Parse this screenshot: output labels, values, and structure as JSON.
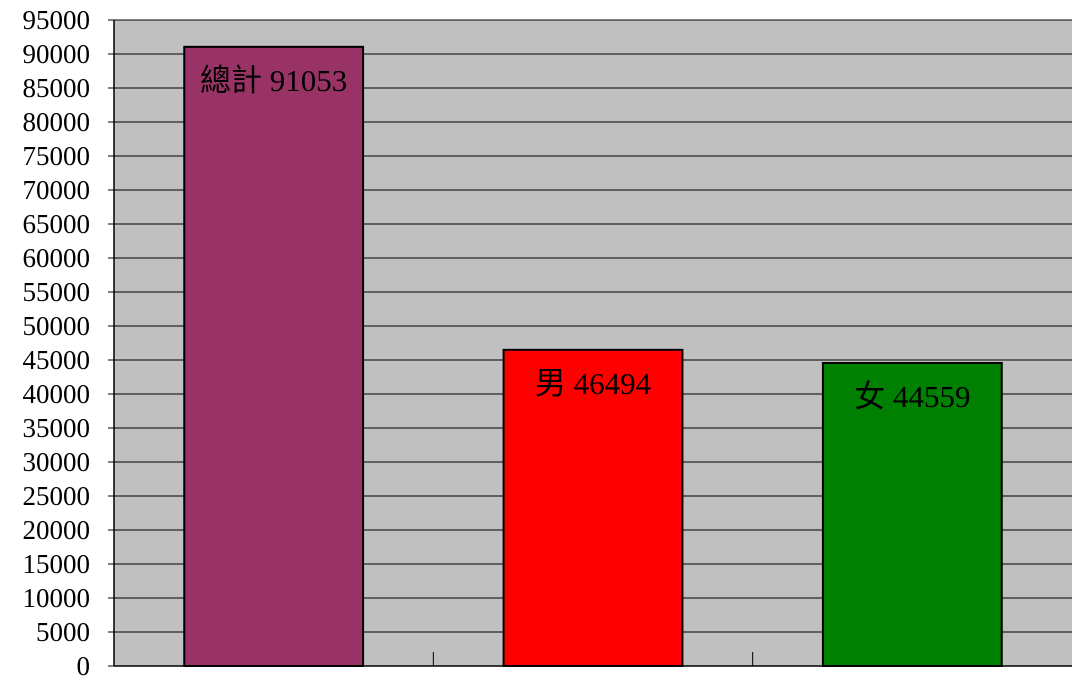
{
  "chart_data": {
    "type": "bar",
    "title": "",
    "xlabel": "",
    "ylabel": "",
    "ylim": [
      0,
      95000
    ],
    "y_tick_step": 5000,
    "y_ticks": [
      "0",
      "5000",
      "10000",
      "15000",
      "20000",
      "25000",
      "30000",
      "35000",
      "40000",
      "45000",
      "50000",
      "55000",
      "60000",
      "65000",
      "70000",
      "75000",
      "80000",
      "85000",
      "90000",
      "95000"
    ],
    "categories": [
      "總計",
      "男",
      "女"
    ],
    "values": [
      91053,
      46494,
      44559
    ],
    "data_labels": [
      "總計 91053",
      "男 46494",
      "女 44559"
    ],
    "bar_colors": [
      "#993366",
      "#ff0000",
      "#008000"
    ],
    "plot_background": "#c0c0c0",
    "grid": true,
    "legend": "none"
  }
}
